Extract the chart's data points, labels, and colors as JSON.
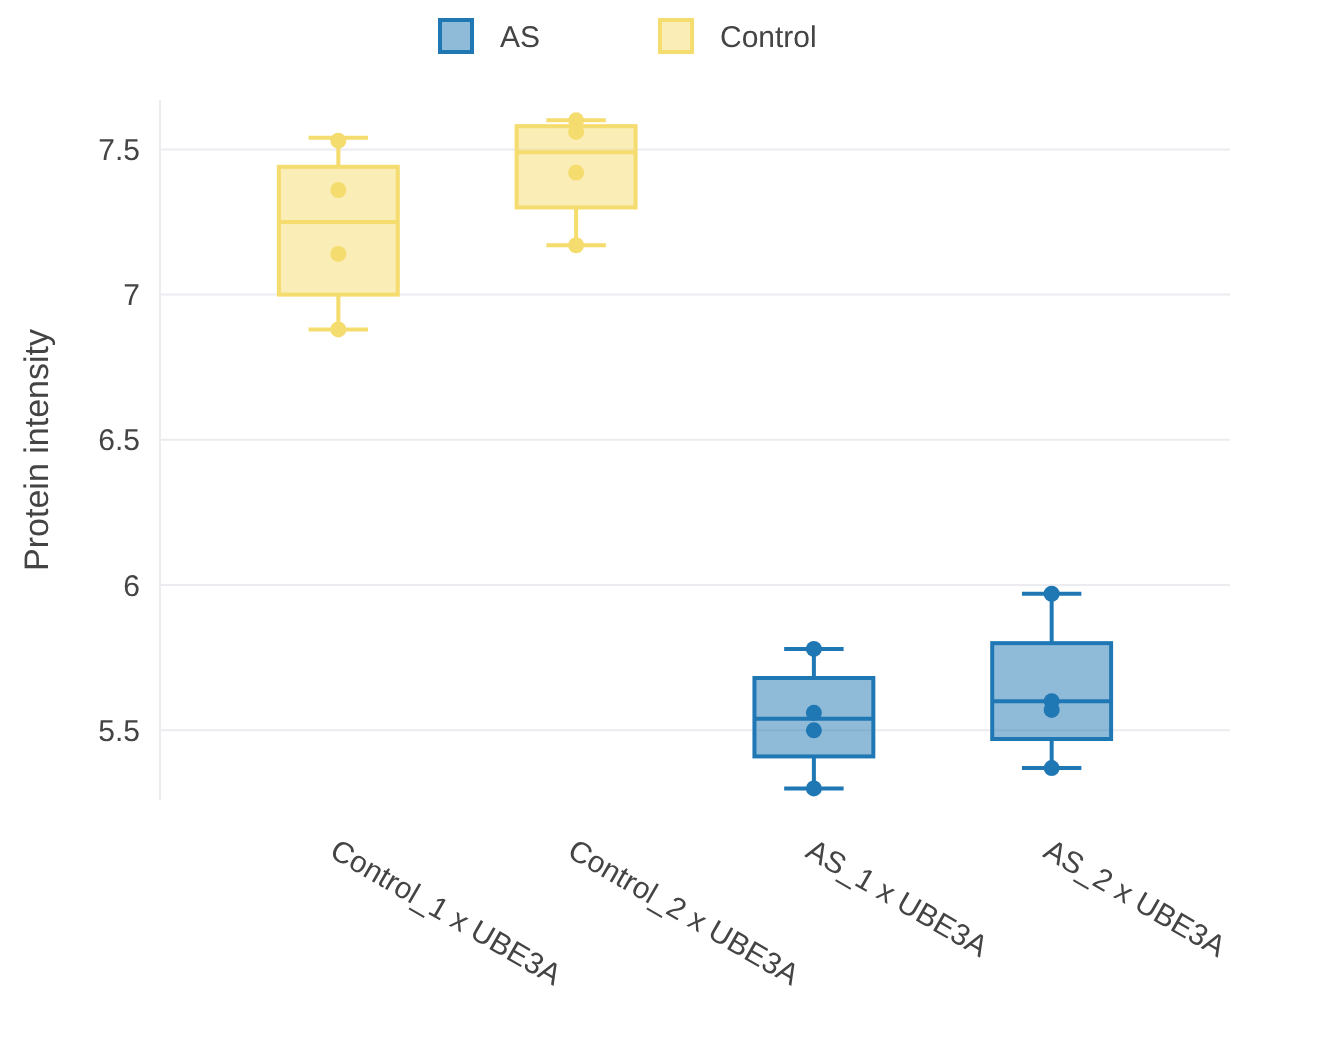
{
  "chart_data": {
    "type": "box",
    "ylabel": "Protein intensity",
    "categories": [
      "Control_1 x UBE3A",
      "Control_2 x UBE3A",
      "AS_1 x UBE3A",
      "AS_2 x UBE3A"
    ],
    "ylim": [
      5.26,
      7.67
    ],
    "yticks": [
      5.5,
      6,
      6.5,
      7,
      7.5
    ],
    "grid": "y",
    "legend": "top",
    "series": [
      {
        "name": "AS",
        "color": "#1f77b4",
        "boxes": [
          null,
          null,
          {
            "low": 5.3,
            "q1": 5.41,
            "median": 5.54,
            "q3": 5.68,
            "high": 5.78
          },
          {
            "low": 5.37,
            "q1": 5.47,
            "median": 5.6,
            "q3": 5.8,
            "high": 5.97
          }
        ]
      },
      {
        "name": "Control",
        "color": "#f5dc6e",
        "boxes": [
          {
            "low": 6.88,
            "q1": 7.0,
            "median": 7.25,
            "q3": 7.44,
            "high": 7.54
          },
          {
            "low": 7.17,
            "q1": 7.3,
            "median": 7.49,
            "q3": 7.58,
            "high": 7.6
          },
          null,
          null
        ]
      },
      {
        "type": "scatter",
        "color": "#1f77b4",
        "x": [
          "AS_1 x UBE3A",
          "AS_1 x UBE3A",
          "AS_1 x UBE3A",
          "AS_1 x UBE3A",
          "AS_2 x UBE3A",
          "AS_2 x UBE3A",
          "AS_2 x UBE3A",
          "AS_2 x UBE3A"
        ],
        "values": [
          5.78,
          5.56,
          5.5,
          5.3,
          5.97,
          5.6,
          5.57,
          5.37
        ]
      },
      {
        "type": "scatter",
        "color": "#f5dc6e",
        "x": [
          "Control_1 x UBE3A",
          "Control_1 x UBE3A",
          "Control_1 x UBE3A",
          "Control_1 x UBE3A",
          "Control_2 x UBE3A",
          "Control_2 x UBE3A",
          "Control_2 x UBE3A",
          "Control_2 x UBE3A"
        ],
        "values": [
          7.53,
          7.36,
          7.14,
          6.88,
          7.6,
          7.56,
          7.42,
          7.17
        ]
      }
    ]
  }
}
